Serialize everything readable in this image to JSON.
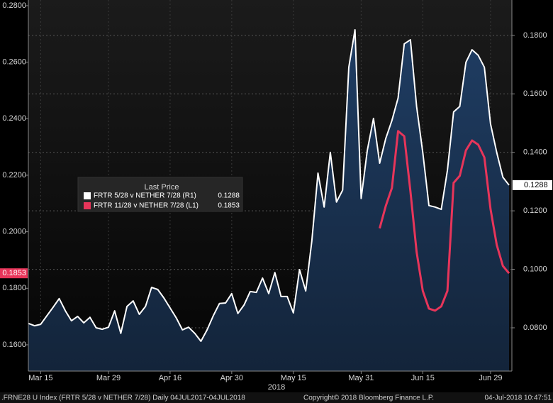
{
  "chart_data": {
    "type": "line",
    "legend_title": "Last Price",
    "x_axis_label": "2018",
    "footer": {
      "left": ".FRNE28 U Index (FRTR 5/28 v NETHER 7/28)  Daily 04JUL2017-04JUL2018",
      "center": "Copyright© 2018 Bloomberg Finance L.P.",
      "right": "04-Jul-2018 10:47:51"
    },
    "categories": [
      null,
      null,
      "Mar 15",
      null,
      null,
      null,
      null,
      null,
      null,
      null,
      null,
      null,
      null,
      "Mar 29",
      null,
      null,
      null,
      null,
      null,
      null,
      null,
      null,
      null,
      "Apr 16",
      null,
      null,
      null,
      null,
      null,
      null,
      null,
      null,
      null,
      "Apr 30",
      null,
      null,
      null,
      null,
      null,
      null,
      null,
      null,
      null,
      "May 15",
      null,
      null,
      null,
      null,
      null,
      null,
      null,
      null,
      null,
      null,
      "May 31",
      null,
      null,
      null,
      null,
      null,
      null,
      null,
      null,
      null,
      "Jun 15",
      null,
      null,
      null,
      null,
      null,
      null,
      null,
      null,
      null,
      null,
      "Jun 29",
      null,
      null,
      null
    ],
    "series": [
      {
        "name": "FRTR 5/28 v NETHER 7/28  (R1)",
        "color": "#ffffff",
        "fill": "#17304f",
        "axis": "y2",
        "values": [
          0.0815,
          0.0807,
          0.0812,
          0.0841,
          0.087,
          0.09,
          0.0858,
          0.0824,
          0.0839,
          0.0817,
          0.0836,
          0.08,
          0.0795,
          0.0802,
          0.0858,
          0.0781,
          0.0873,
          0.0892,
          0.0846,
          0.0873,
          0.0938,
          0.0931,
          0.0902,
          0.0868,
          0.0834,
          0.0793,
          0.0802,
          0.0781,
          0.0754,
          0.0793,
          0.0841,
          0.0883,
          0.0885,
          0.0917,
          0.0849,
          0.0878,
          0.0924,
          0.0921,
          0.097,
          0.0917,
          0.0989,
          0.0907,
          0.0907,
          0.0851,
          0.0999,
          0.0926,
          0.1096,
          0.1329,
          0.1213,
          0.14,
          0.123,
          0.1271,
          0.1691,
          0.1819,
          0.1242,
          0.1407,
          0.1516,
          0.1363,
          0.1448,
          0.1509,
          0.1586,
          0.1771,
          0.1785,
          0.1557,
          0.14,
          0.1218,
          0.1213,
          0.1205,
          0.1339,
          0.1538,
          0.1557,
          0.1708,
          0.1751,
          0.1732,
          0.1691,
          0.1497,
          0.14,
          0.1315,
          0.1288
        ]
      },
      {
        "name": "FRTR 11/28 v NETHER 7/28  (L1)",
        "color": "#e8355a",
        "axis": "y",
        "values": [
          null,
          null,
          null,
          null,
          null,
          null,
          null,
          null,
          null,
          null,
          null,
          null,
          null,
          null,
          null,
          null,
          null,
          null,
          null,
          null,
          null,
          null,
          null,
          null,
          null,
          null,
          null,
          null,
          null,
          null,
          null,
          null,
          null,
          null,
          null,
          null,
          null,
          null,
          null,
          null,
          null,
          null,
          null,
          null,
          null,
          null,
          null,
          null,
          null,
          null,
          null,
          null,
          null,
          null,
          null,
          null,
          null,
          0.2012,
          0.2092,
          0.2155,
          0.2356,
          0.2338,
          0.2143,
          0.1929,
          0.1791,
          0.1728,
          0.1721,
          0.1736,
          0.1791,
          0.2173,
          0.2198,
          0.2288,
          0.2323,
          0.2308,
          0.2263,
          0.208,
          0.1954,
          0.1879,
          0.1853
        ]
      }
    ],
    "ylim": [
      0.1507,
      0.282
    ],
    "yticks": [
      {
        "value": 0.16,
        "label": "0.1600"
      },
      {
        "value": 0.18,
        "label": "0.1800"
      },
      {
        "value": 0.2,
        "label": "0.2000"
      },
      {
        "value": 0.22,
        "label": "0.2200"
      },
      {
        "value": 0.24,
        "label": "0.2400"
      },
      {
        "value": 0.26,
        "label": "0.2600"
      },
      {
        "value": 0.28,
        "label": "0.2800"
      }
    ],
    "y2lim": [
      0.0652,
      0.1921
    ],
    "y2ticks": [
      {
        "value": 0.08,
        "label": "0.0800"
      },
      {
        "value": 0.1,
        "label": "0.1000"
      },
      {
        "value": 0.12,
        "label": "0.1200"
      },
      {
        "value": 0.14,
        "label": "0.1400"
      },
      {
        "value": 0.16,
        "label": "0.1600"
      },
      {
        "value": 0.18,
        "label": "0.1800"
      }
    ],
    "grid": true
  }
}
